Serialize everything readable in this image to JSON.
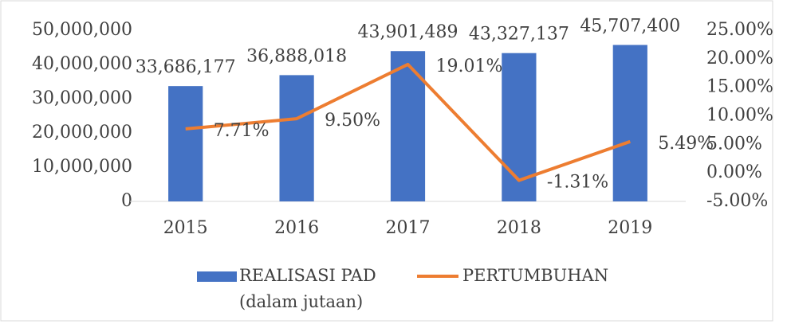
{
  "chart_data": {
    "type": "bar-line",
    "categories": [
      "2015",
      "2016",
      "2017",
      "2018",
      "2019"
    ],
    "series": [
      {
        "name": "REALISASI PAD (dalam jutaan)",
        "color": "#4472c4",
        "type": "bar",
        "values": [
          33686177,
          36888018,
          43901489,
          43327137,
          45707400
        ],
        "value_labels": [
          "33,686,177",
          "36,888,018",
          "43,901,489",
          "43,327,137",
          "45,707,400"
        ]
      },
      {
        "name": "PERTUMBUHAN",
        "color": "#ed7d31",
        "type": "line",
        "axis": "y2",
        "values": [
          7.71,
          9.5,
          19.01,
          -1.31,
          5.49
        ],
        "value_labels": [
          "7.71%",
          "9.50%",
          "19.01%",
          "-1.31%",
          "5.49%"
        ]
      }
    ],
    "ylim": [
      0,
      50000000
    ],
    "yticks": [
      0,
      {
        "value": 10000000,
        "label": "10,000,000"
      },
      {
        "value": 20000000,
        "label": "20,000,000"
      },
      {
        "value": 30000000,
        "label": "30,000,000"
      },
      {
        "value": 40000000,
        "label": "40,000,000"
      },
      {
        "value": 50000000,
        "label": "50,000,000"
      }
    ],
    "y2lim": [
      -5,
      25
    ],
    "y2ticks": [
      {
        "value": -5,
        "label": "-5.00%"
      },
      {
        "value": 0,
        "label": "0.00%"
      },
      {
        "value": 5,
        "label": "5.00%"
      },
      {
        "value": 10,
        "label": "10.00%"
      },
      {
        "value": 15,
        "label": "15.00%"
      },
      {
        "value": 20,
        "label": "20.00%"
      },
      {
        "value": 25,
        "label": "25.00%"
      }
    ],
    "grid": false,
    "legend": "bottom"
  }
}
